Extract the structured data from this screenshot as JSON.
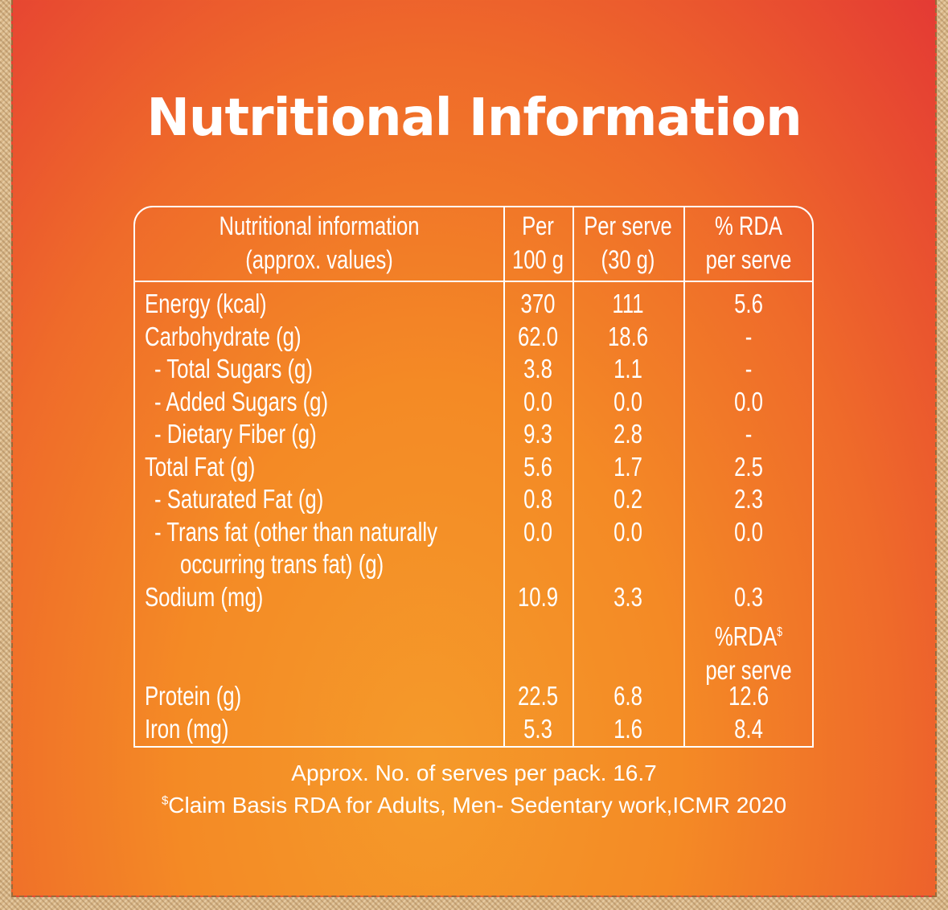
{
  "title": "Nutritional Information",
  "headers": {
    "col1_line1": "Nutritional information",
    "col1_line2": "(approx. values)",
    "col2_line1": "Per",
    "col2_line2": "100 g",
    "col3_line1": "Per serve",
    "col3_line2": "(30 g)",
    "col4_line1": "% RDA",
    "col4_line2": "per serve"
  },
  "rows": [
    {
      "label": "Energy (kcal)",
      "per100": "370",
      "perServe": "111",
      "rda": "5.6"
    },
    {
      "label": "Carbohydrate (g)",
      "per100": "62.0",
      "perServe": "18.6",
      "rda": "-"
    },
    {
      "label": "- Total Sugars (g)",
      "per100": "3.8",
      "perServe": "1.1",
      "rda": "-"
    },
    {
      "label": "- Added Sugars (g)",
      "per100": "0.0",
      "perServe": "0.0",
      "rda": "0.0"
    },
    {
      "label": "- Dietary Fiber (g)",
      "per100": "9.3",
      "perServe": "2.8",
      "rda": "-"
    },
    {
      "label": "Total Fat (g)",
      "per100": "5.6",
      "perServe": "1.7",
      "rda": "2.5"
    },
    {
      "label": "- Saturated Fat (g)",
      "per100": "0.8",
      "perServe": "0.2",
      "rda": "2.3"
    },
    {
      "label": "- Trans fat (other than naturally",
      "per100": "0.0",
      "perServe": "0.0",
      "rda": "0.0"
    },
    {
      "label": "occurring trans fat) (g)",
      "per100": "",
      "perServe": "",
      "rda": ""
    },
    {
      "label": "Sodium (mg)",
      "per100": "10.9",
      "perServe": "3.3",
      "rda": "0.3"
    }
  ],
  "subheader": {
    "line1": "%RDA",
    "sup": "$",
    "line2": "per serve"
  },
  "rows2": [
    {
      "label": "Protein (g)",
      "per100": "22.5",
      "perServe": "6.8",
      "rda": "12.6"
    },
    {
      "label": "Iron (mg)",
      "per100": "5.3",
      "perServe": "1.6",
      "rda": "8.4"
    }
  ],
  "footer": {
    "serves": "Approx. No. of serves per pack. 16.7",
    "claim_sup": "$",
    "claim": "Claim Basis RDA for Adults, Men- Sedentary work,ICMR 2020"
  },
  "colors": {
    "panel_top": "#e43a34",
    "panel_bottom": "#f59a2a",
    "text": "#ffffff"
  }
}
